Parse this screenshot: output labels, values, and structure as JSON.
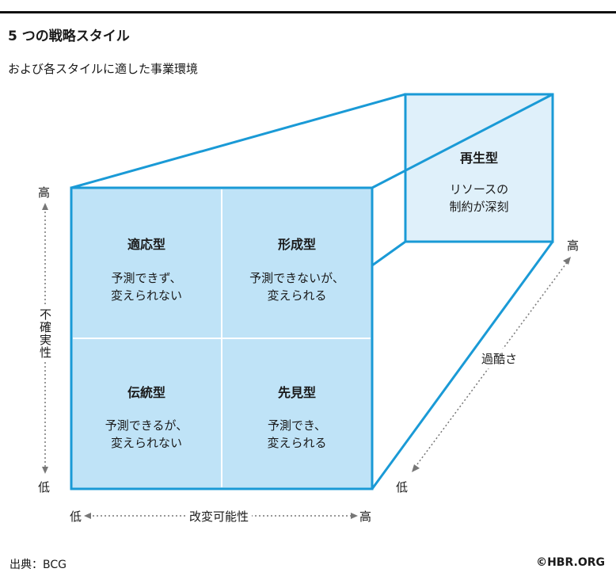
{
  "header": {
    "title": "5 つの戦略スタイル",
    "subtitle": "および各スタイルに適した事業環境"
  },
  "cube": {
    "front": [
      {
        "title": "適応型",
        "desc_line1": "予測できず、",
        "desc_line2": "変えられない"
      },
      {
        "title": "形成型",
        "desc_line1": "予測できないが、",
        "desc_line2": "変えられる"
      },
      {
        "title": "伝統型",
        "desc_line1": "予測できるが、",
        "desc_line2": "変えられない"
      },
      {
        "title": "先見型",
        "desc_line1": "予測でき、",
        "desc_line2": "変えられる"
      }
    ],
    "back": {
      "title": "再生型",
      "desc_line1": "リソースの",
      "desc_line2": "制約が深刻"
    }
  },
  "axes": {
    "y": {
      "label": "不確実性",
      "high": "高",
      "low": "低"
    },
    "x": {
      "label": "改変可能性",
      "high": "高",
      "low": "低"
    },
    "z": {
      "label": "過酷さ",
      "high": "高",
      "low": "低"
    }
  },
  "colors": {
    "front_fill": "#bfe3f7",
    "back_fill": "#dff0fa",
    "edge": "#1a9ad6",
    "arrow": "#777777"
  },
  "footer": {
    "source": "出典：BCG",
    "copyright": "©HBR.ORG"
  }
}
